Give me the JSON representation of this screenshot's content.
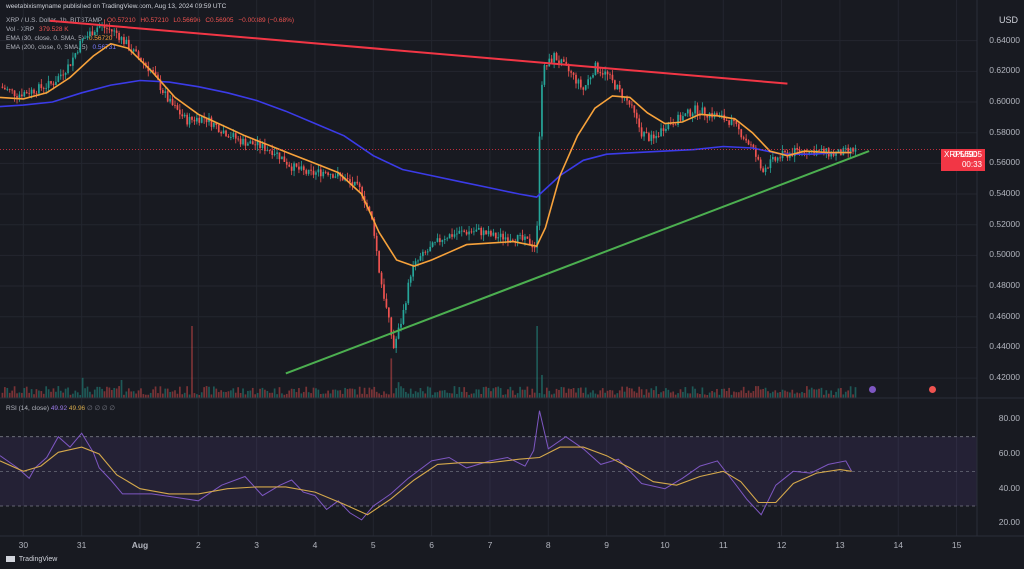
{
  "header": {
    "publisher": "weetabixismyname published on TradingView.com, Aug 13, 2024 09:59 UTC",
    "symbol": "XRP / U.S. Dollar, 1h, BITSTAMP",
    "open": "O0.57210",
    "high": "H0.57210",
    "low": "L0.56696",
    "close": "C0.56905",
    "change": "−0.00389 (−0.68%)",
    "vol_label": "Vol · XRP",
    "vol_value": "379.528 K",
    "ema30_label": "EMA (30, close, 0, SMA, 5)",
    "ema30_value": "0.56720",
    "ema200_label": "EMA (200, close, 0, SMA, 5)",
    "ema200_value": "0.56731"
  },
  "currency": "USD",
  "price_badge": {
    "symbol": "XRPUSD",
    "price": "0.56905",
    "countdown": "00:33"
  },
  "rsi_legend": {
    "label": "RSI (14, close)",
    "rsi": "49.92",
    "ma": "49.96"
  },
  "footer": {
    "brand": "TradingView"
  },
  "colors": {
    "background": "#181a21",
    "up": "#26a69a",
    "down": "#ef5350",
    "ema30": "#f7a23b",
    "ema200": "#3b3be8",
    "resistance": "#f23645",
    "support": "#4caf50",
    "rsi": "#7e57c2",
    "rsi_ma": "#d4a84b"
  },
  "icons": [
    "flag-icon",
    "calendar-event-icon"
  ],
  "chart_data": [
    {
      "type": "candlestick",
      "interval": "1h",
      "x_tick_labels": [
        "30",
        "31",
        "Aug",
        "2",
        "3",
        "4",
        "5",
        "6",
        "7",
        "8",
        "9",
        "10",
        "11",
        "12",
        "13",
        "14",
        "15"
      ],
      "y_tick_labels": [
        "0.42000",
        "0.44000",
        "0.46000",
        "0.48000",
        "0.50000",
        "0.52000",
        "0.54000",
        "0.56000",
        "0.58000",
        "0.60000",
        "0.62000",
        "0.64000"
      ],
      "ylim": [
        0.407,
        0.66
      ],
      "xlim": [
        29.6,
        15.35
      ],
      "close_path": [
        [
          29.6,
          0.61
        ],
        [
          29.9,
          0.605
        ],
        [
          30.2,
          0.608
        ],
        [
          30.5,
          0.612
        ],
        [
          30.8,
          0.625
        ],
        [
          31.0,
          0.64
        ],
        [
          31.3,
          0.65
        ],
        [
          31.6,
          0.645
        ],
        [
          31.9,
          0.632
        ],
        [
          32.2,
          0.62
        ],
        [
          32.5,
          0.6
        ],
        [
          32.8,
          0.588
        ],
        [
          33.1,
          0.59
        ],
        [
          33.4,
          0.582
        ],
        [
          33.7,
          0.575
        ],
        [
          34.0,
          0.572
        ],
        [
          34.3,
          0.568
        ],
        [
          34.6,
          0.558
        ],
        [
          34.9,
          0.553
        ],
        [
          35.2,
          0.555
        ],
        [
          35.5,
          0.55
        ],
        [
          35.8,
          0.542
        ],
        [
          36.0,
          0.52
        ],
        [
          36.1,
          0.49
        ],
        [
          36.2,
          0.47
        ],
        [
          36.35,
          0.44
        ],
        [
          36.5,
          0.46
        ],
        [
          36.65,
          0.49
        ],
        [
          36.8,
          0.498
        ],
        [
          37.0,
          0.505
        ],
        [
          37.2,
          0.512
        ],
        [
          37.5,
          0.515
        ],
        [
          37.8,
          0.516
        ],
        [
          38.1,
          0.512
        ],
        [
          38.4,
          0.512
        ],
        [
          38.7,
          0.508
        ],
        [
          38.8,
          0.505
        ],
        [
          38.85,
          0.58
        ],
        [
          38.9,
          0.62
        ],
        [
          39.1,
          0.63
        ],
        [
          39.4,
          0.618
        ],
        [
          39.6,
          0.608
        ],
        [
          39.8,
          0.623
        ],
        [
          40.0,
          0.618
        ],
        [
          40.2,
          0.608
        ],
        [
          40.4,
          0.598
        ],
        [
          40.6,
          0.58
        ],
        [
          40.8,
          0.575
        ],
        [
          41.0,
          0.585
        ],
        [
          41.3,
          0.59
        ],
        [
          41.5,
          0.595
        ],
        [
          41.8,
          0.592
        ],
        [
          42.1,
          0.588
        ],
        [
          42.3,
          0.58
        ],
        [
          42.5,
          0.57
        ],
        [
          42.65,
          0.556
        ],
        [
          42.8,
          0.56
        ],
        [
          43.0,
          0.565
        ],
        [
          43.3,
          0.568
        ],
        [
          43.6,
          0.568
        ],
        [
          43.9,
          0.566
        ],
        [
          44.2,
          0.568
        ],
        [
          44.3,
          0.569
        ]
      ],
      "ema30_path": [
        [
          29.6,
          0.603
        ],
        [
          30.0,
          0.602
        ],
        [
          30.4,
          0.606
        ],
        [
          30.8,
          0.616
        ],
        [
          31.2,
          0.63
        ],
        [
          31.5,
          0.638
        ],
        [
          31.8,
          0.635
        ],
        [
          32.2,
          0.62
        ],
        [
          32.6,
          0.603
        ],
        [
          33.0,
          0.592
        ],
        [
          33.4,
          0.585
        ],
        [
          33.8,
          0.578
        ],
        [
          34.2,
          0.572
        ],
        [
          34.6,
          0.566
        ],
        [
          35.0,
          0.56
        ],
        [
          35.4,
          0.554
        ],
        [
          35.8,
          0.54
        ],
        [
          36.1,
          0.515
        ],
        [
          36.4,
          0.497
        ],
        [
          36.7,
          0.493
        ],
        [
          37.0,
          0.497
        ],
        [
          37.3,
          0.502
        ],
        [
          37.6,
          0.507
        ],
        [
          38.0,
          0.508
        ],
        [
          38.4,
          0.509
        ],
        [
          38.8,
          0.506
        ],
        [
          38.95,
          0.518
        ],
        [
          39.2,
          0.552
        ],
        [
          39.5,
          0.578
        ],
        [
          39.8,
          0.596
        ],
        [
          40.1,
          0.604
        ],
        [
          40.4,
          0.603
        ],
        [
          40.7,
          0.593
        ],
        [
          41.0,
          0.586
        ],
        [
          41.3,
          0.587
        ],
        [
          41.6,
          0.592
        ],
        [
          41.9,
          0.591
        ],
        [
          42.2,
          0.589
        ],
        [
          42.5,
          0.58
        ],
        [
          42.8,
          0.568
        ],
        [
          43.1,
          0.565
        ],
        [
          43.4,
          0.568
        ],
        [
          43.8,
          0.567
        ],
        [
          44.2,
          0.567
        ]
      ],
      "ema200_path": [
        [
          29.6,
          0.597
        ],
        [
          30.0,
          0.598
        ],
        [
          30.5,
          0.6
        ],
        [
          31.0,
          0.606
        ],
        [
          31.5,
          0.611
        ],
        [
          32.0,
          0.614
        ],
        [
          32.5,
          0.613
        ],
        [
          33.0,
          0.61
        ],
        [
          33.5,
          0.606
        ],
        [
          34.0,
          0.601
        ],
        [
          34.5,
          0.594
        ],
        [
          35.0,
          0.586
        ],
        [
          35.5,
          0.578
        ],
        [
          36.0,
          0.565
        ],
        [
          36.5,
          0.556
        ],
        [
          37.0,
          0.552
        ],
        [
          37.5,
          0.548
        ],
        [
          38.0,
          0.544
        ],
        [
          38.5,
          0.54
        ],
        [
          38.8,
          0.538
        ],
        [
          39.2,
          0.552
        ],
        [
          39.6,
          0.562
        ],
        [
          40.0,
          0.566
        ],
        [
          40.5,
          0.567
        ],
        [
          41.0,
          0.568
        ],
        [
          41.5,
          0.569
        ],
        [
          42.0,
          0.571
        ],
        [
          42.5,
          0.57
        ],
        [
          43.0,
          0.566
        ],
        [
          43.5,
          0.566
        ],
        [
          44.0,
          0.567
        ],
        [
          44.2,
          0.567
        ]
      ],
      "resistance_line": [
        [
          30.45,
          0.653
        ],
        [
          43.1,
          0.612
        ]
      ],
      "support_line": [
        [
          34.5,
          0.423
        ],
        [
          44.5,
          0.568
        ]
      ],
      "volume_spikes": [
        [
          32.9,
          1.0
        ],
        [
          38.8,
          1.0
        ],
        [
          36.3,
          0.55
        ],
        [
          31.0,
          0.28
        ],
        [
          38.9,
          0.32
        ],
        [
          31.7,
          0.25
        ],
        [
          36.45,
          0.22
        ]
      ]
    },
    {
      "type": "line",
      "name": "RSI (14, close)",
      "y_tick_labels": [
        "20.00",
        "40.00",
        "60.00",
        "80.00"
      ],
      "ylim": [
        15,
        90
      ],
      "band": [
        30,
        70
      ],
      "rsi_path": [
        [
          29.6,
          59
        ],
        [
          29.9,
          52
        ],
        [
          30.1,
          46
        ],
        [
          30.2,
          52
        ],
        [
          30.4,
          58
        ],
        [
          30.6,
          70
        ],
        [
          30.8,
          64
        ],
        [
          31.0,
          72
        ],
        [
          31.2,
          61
        ],
        [
          31.3,
          52
        ],
        [
          31.5,
          45
        ],
        [
          31.7,
          37
        ],
        [
          31.9,
          37
        ],
        [
          32.2,
          37
        ],
        [
          32.6,
          35
        ],
        [
          33.0,
          33
        ],
        [
          33.4,
          42
        ],
        [
          33.8,
          47
        ],
        [
          34.1,
          36
        ],
        [
          34.4,
          42
        ],
        [
          34.6,
          45
        ],
        [
          34.8,
          38
        ],
        [
          35.0,
          36
        ],
        [
          35.2,
          28
        ],
        [
          35.4,
          33
        ],
        [
          35.6,
          26
        ],
        [
          35.8,
          22
        ],
        [
          36.0,
          30
        ],
        [
          36.3,
          37
        ],
        [
          36.6,
          46
        ],
        [
          37.0,
          56
        ],
        [
          37.3,
          58
        ],
        [
          37.6,
          52
        ],
        [
          38.0,
          56
        ],
        [
          38.3,
          58
        ],
        [
          38.6,
          53
        ],
        [
          38.75,
          62
        ],
        [
          38.85,
          85
        ],
        [
          39.0,
          63
        ],
        [
          39.3,
          70
        ],
        [
          39.6,
          63
        ],
        [
          39.9,
          54
        ],
        [
          40.2,
          57
        ],
        [
          40.6,
          43
        ],
        [
          41.0,
          40
        ],
        [
          41.3,
          46
        ],
        [
          41.6,
          53
        ],
        [
          41.9,
          56
        ],
        [
          42.2,
          43
        ],
        [
          42.4,
          34
        ],
        [
          42.65,
          25
        ],
        [
          42.9,
          42
        ],
        [
          43.2,
          50
        ],
        [
          43.5,
          49
        ],
        [
          43.8,
          54
        ],
        [
          44.1,
          56
        ],
        [
          44.2,
          50
        ]
      ],
      "ma_path": [
        [
          29.6,
          56
        ],
        [
          30.0,
          50
        ],
        [
          30.3,
          53
        ],
        [
          30.6,
          61
        ],
        [
          31.0,
          64
        ],
        [
          31.3,
          60
        ],
        [
          31.6,
          48
        ],
        [
          32.0,
          40
        ],
        [
          32.5,
          37
        ],
        [
          33.0,
          37
        ],
        [
          33.5,
          40
        ],
        [
          34.0,
          41
        ],
        [
          34.5,
          41
        ],
        [
          35.0,
          38
        ],
        [
          35.5,
          31
        ],
        [
          35.9,
          25
        ],
        [
          36.3,
          34
        ],
        [
          36.7,
          45
        ],
        [
          37.1,
          54
        ],
        [
          37.5,
          55
        ],
        [
          38.0,
          55
        ],
        [
          38.5,
          57
        ],
        [
          38.85,
          58
        ],
        [
          39.2,
          64
        ],
        [
          39.6,
          64
        ],
        [
          40.0,
          59
        ],
        [
          40.4,
          52
        ],
        [
          40.8,
          44
        ],
        [
          41.2,
          42
        ],
        [
          41.6,
          47
        ],
        [
          42.0,
          50
        ],
        [
          42.3,
          44
        ],
        [
          42.6,
          32
        ],
        [
          42.9,
          32
        ],
        [
          43.2,
          43
        ],
        [
          43.6,
          49
        ],
        [
          44.0,
          51
        ],
        [
          44.2,
          50
        ]
      ]
    }
  ]
}
